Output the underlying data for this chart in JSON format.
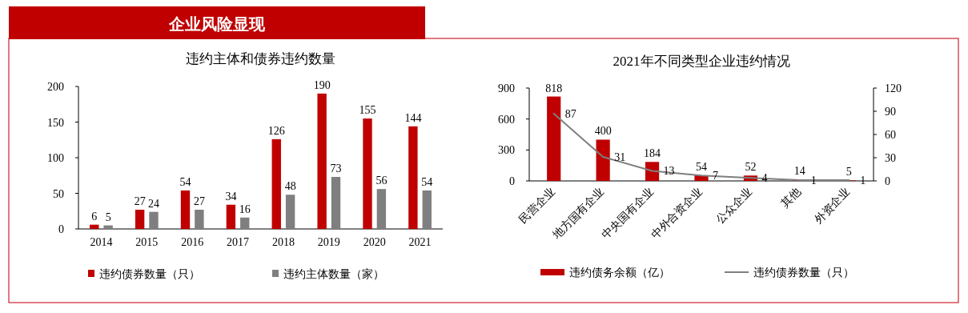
{
  "chart_data": [
    {
      "type": "other",
      "title": "企业风险显现"
    },
    {
      "type": "bar",
      "title": "违约主体和债券违约数量",
      "categories": [
        "2014",
        "2015",
        "2016",
        "2017",
        "2018",
        "2019",
        "2020",
        "2021"
      ],
      "series": [
        {
          "name": "违约债券数量（只）",
          "color": "#c00000",
          "values": [
            6,
            27,
            54,
            34,
            126,
            190,
            155,
            144
          ]
        },
        {
          "name": "违约主体数量（家）",
          "color": "#7f7f7f",
          "values": [
            5,
            24,
            27,
            16,
            48,
            73,
            56,
            54
          ]
        }
      ],
      "ylim": [
        0,
        200
      ],
      "yticks": [
        0,
        50,
        100,
        150,
        200
      ],
      "data_labels": true,
      "legend": "bottom"
    },
    {
      "type": "bar",
      "title": "2021年不同类型企业违约情况",
      "categories": [
        "民营企业",
        "地方国有企业",
        "中央国有企业",
        "中外合资企业",
        "公众企业",
        "其他",
        "外资企业"
      ],
      "series": [
        {
          "name": "违约债务余额（亿）",
          "color": "#c00000",
          "values": [
            818,
            400,
            184,
            54,
            52,
            14,
            5
          ]
        },
        {
          "name": "违约债券数量（只）",
          "type": "line",
          "axis": "y2",
          "color": "#7f7f7f",
          "values": [
            87,
            31,
            13,
            7,
            4,
            1,
            1
          ]
        }
      ],
      "ylim": [
        0,
        900
      ],
      "yticks": [
        0,
        300,
        600,
        900
      ],
      "y2lim": [
        0,
        120
      ],
      "y2ticks": [
        0,
        30,
        60,
        90,
        120
      ],
      "data_labels": true,
      "legend": "bottom"
    }
  ]
}
